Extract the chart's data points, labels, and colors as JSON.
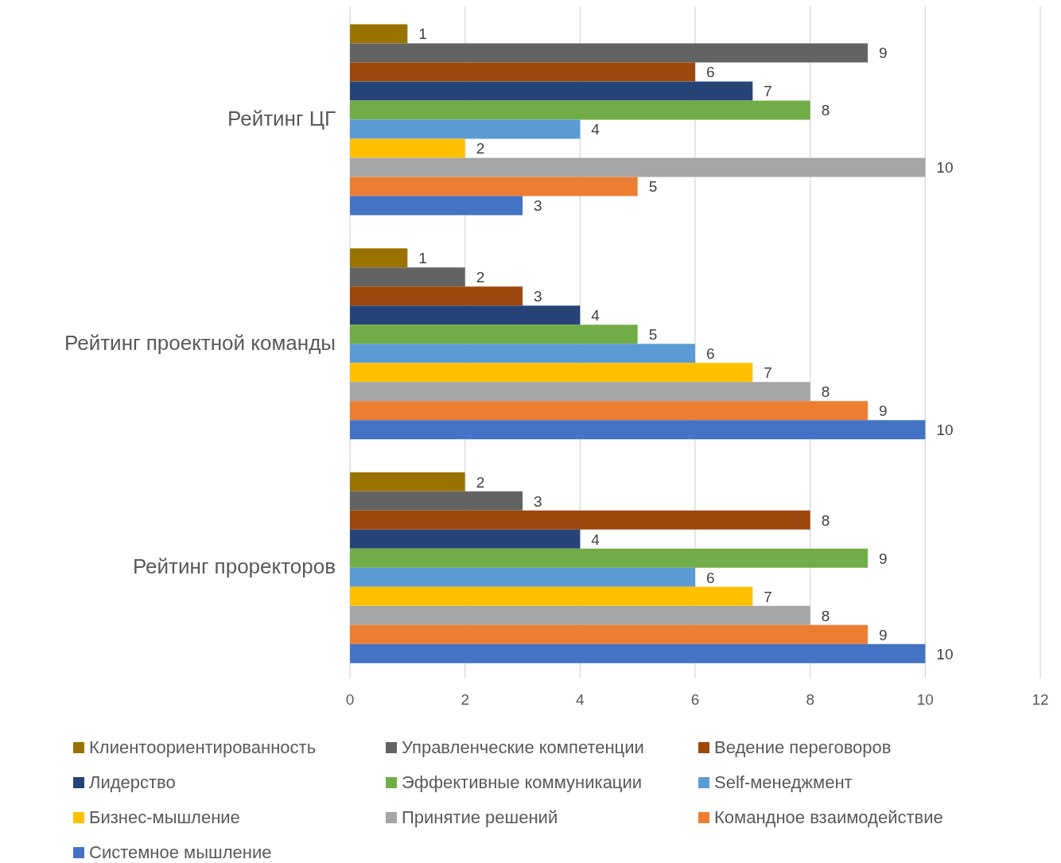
{
  "chart_data": {
    "type": "bar",
    "orientation": "horizontal",
    "categories": [
      "Рейтинг ЦГ",
      "Рейтинг проектной команды",
      "Рейтинг проректоров"
    ],
    "series": [
      {
        "name": "Клиентоориентированность",
        "color": "#997300",
        "values": [
          1,
          1,
          2
        ]
      },
      {
        "name": "Управленческие компетенции",
        "color": "#636363",
        "values": [
          9,
          2,
          3
        ]
      },
      {
        "name": "Ведение переговоров",
        "color": "#9e480e",
        "values": [
          6,
          3,
          8
        ]
      },
      {
        "name": "Лидерство",
        "color": "#264478",
        "values": [
          7,
          4,
          4
        ]
      },
      {
        "name": "Эффективные коммуникации",
        "color": "#70ad47",
        "values": [
          8,
          5,
          9
        ]
      },
      {
        "name": "Self-менеджмент",
        "color": "#5b9bd5",
        "values": [
          4,
          6,
          6
        ]
      },
      {
        "name": "Бизнес-мышление",
        "color": "#ffc000",
        "values": [
          2,
          7,
          7
        ]
      },
      {
        "name": "Принятие решений",
        "color": "#a5a5a5",
        "values": [
          10,
          8,
          8
        ]
      },
      {
        "name": "Командное взаимодействие",
        "color": "#ed7d31",
        "values": [
          5,
          9,
          9
        ]
      },
      {
        "name": "Системное мышление",
        "color": "#4472c4",
        "values": [
          3,
          10,
          10
        ]
      }
    ],
    "xlim": [
      0,
      12
    ],
    "xticks": [
      0,
      2,
      4,
      6,
      8,
      10,
      12
    ],
    "grid": "x",
    "data_labels": true,
    "legend": "bottom"
  }
}
